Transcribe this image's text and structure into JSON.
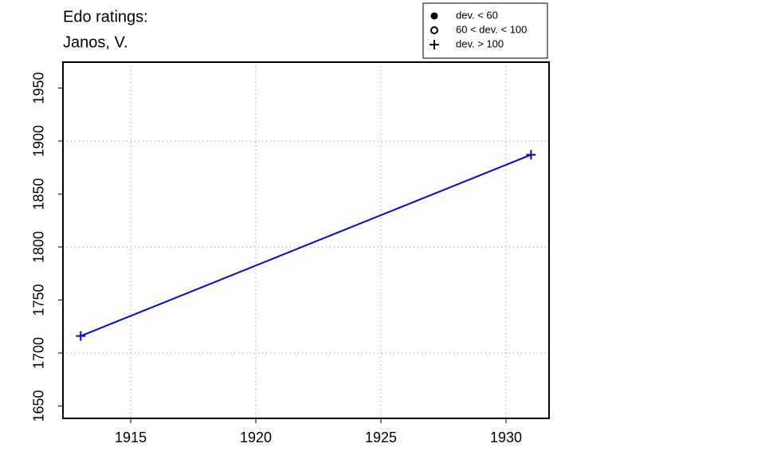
{
  "chart_data": {
    "type": "line",
    "title": "Edo ratings:",
    "subtitle": "Janos, V.",
    "series": [
      {
        "color": "#0000ff",
        "marker": "plus",
        "x": [
          1913,
          1931
        ],
        "values": [
          1716,
          1887
        ]
      }
    ],
    "xlim": [
      1912.29,
      1931.72
    ],
    "xticks": [
      1915,
      1920,
      1925,
      1930
    ],
    "ylim": [
      1638.3,
      1974.4
    ],
    "yticks": [
      1650,
      1700,
      1750,
      1800,
      1850,
      1900,
      1950
    ],
    "x_grid": [
      1915,
      1920,
      1925,
      1930
    ],
    "y_grid": [
      1700,
      1800,
      1900
    ],
    "legend": [
      {
        "label": "dev. < 60",
        "marker": "filled-circle"
      },
      {
        "label": "60 < dev. < 100",
        "marker": "open-circle"
      },
      {
        "label": "dev. > 100",
        "marker": "plus"
      }
    ]
  }
}
